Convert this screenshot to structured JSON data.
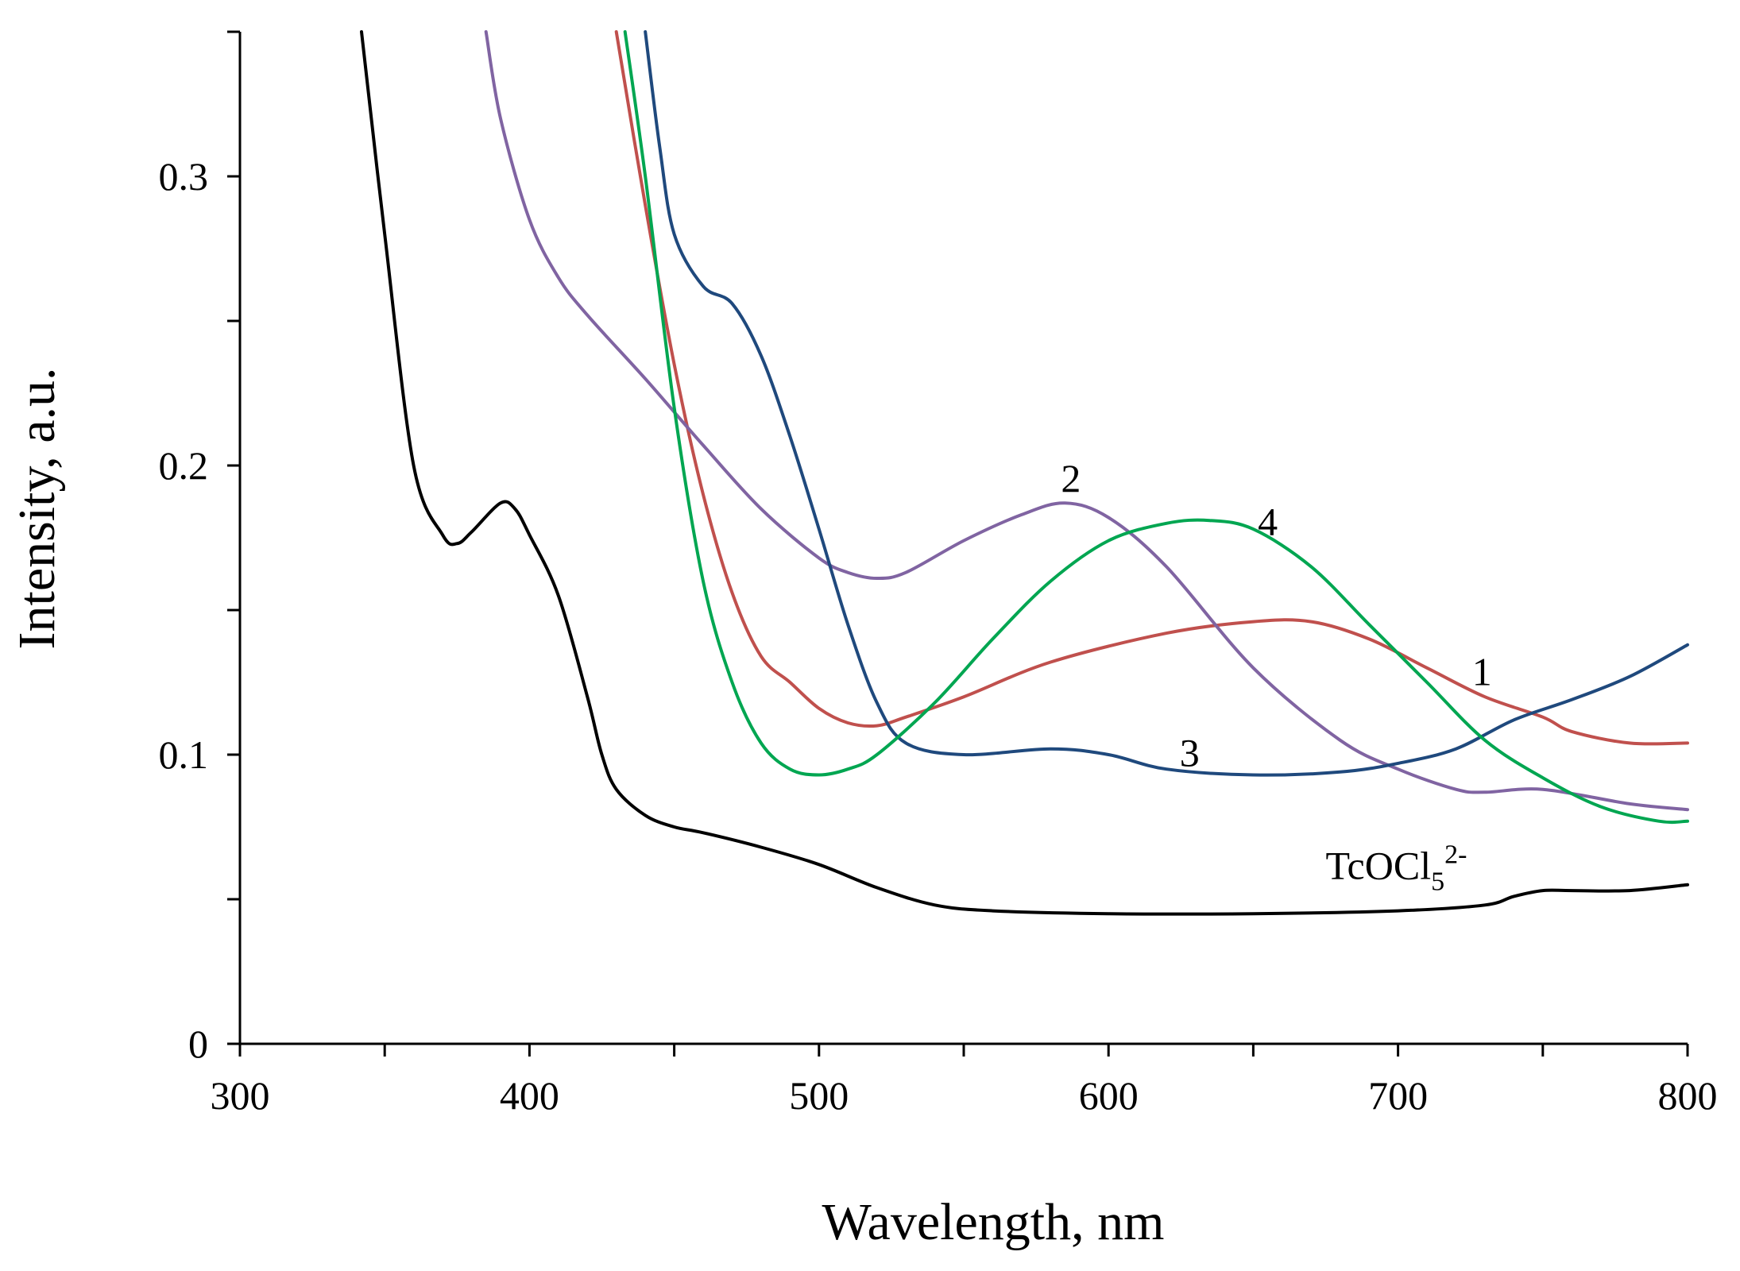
{
  "chart_data": {
    "type": "line",
    "title": "",
    "xlabel": "Wavelength, nm",
    "ylabel": "Intensity, a.u.",
    "xlim": [
      300,
      800
    ],
    "ylim": [
      0,
      0.35
    ],
    "x_ticks": [
      300,
      400,
      500,
      600,
      700,
      800
    ],
    "x_tick_labels": [
      "300",
      "400",
      "500",
      "600",
      "700",
      "800"
    ],
    "y_ticks": [
      0,
      0.1,
      0.2,
      0.3
    ],
    "y_tick_labels": [
      "0",
      "0.1",
      "0.2",
      "0.3"
    ],
    "grid": false,
    "legend": "none",
    "series": [
      {
        "name": "TcOCl5 2-",
        "label_main": "TcOCl",
        "label_sub": "5",
        "label_sup": "2-",
        "label_at": [
          675,
          0.057
        ],
        "color": "#000000",
        "x": [
          342,
          350,
          360,
          370,
          375,
          380,
          390,
          395,
          400,
          410,
          420,
          425,
          430,
          440,
          450,
          460,
          480,
          500,
          520,
          540,
          560,
          600,
          650,
          700,
          730,
          740,
          750,
          760,
          780,
          800
        ],
        "y": [
          0.35,
          0.28,
          0.2,
          0.176,
          0.173,
          0.177,
          0.187,
          0.185,
          0.176,
          0.155,
          0.12,
          0.1,
          0.088,
          0.079,
          0.075,
          0.073,
          0.068,
          0.062,
          0.054,
          0.048,
          0.046,
          0.045,
          0.045,
          0.046,
          0.048,
          0.051,
          0.053,
          0.053,
          0.053,
          0.055
        ]
      },
      {
        "name": "1",
        "label_at": [
          729,
          0.124
        ],
        "color": "#c0504d",
        "x": [
          430,
          440,
          450,
          460,
          470,
          480,
          490,
          500,
          510,
          520,
          530,
          550,
          580,
          620,
          650,
          670,
          690,
          710,
          730,
          750,
          760,
          780,
          800
        ],
        "y": [
          0.35,
          0.29,
          0.235,
          0.19,
          0.156,
          0.134,
          0.125,
          0.116,
          0.111,
          0.11,
          0.113,
          0.12,
          0.132,
          0.142,
          0.146,
          0.146,
          0.14,
          0.13,
          0.12,
          0.113,
          0.108,
          0.104,
          0.104
        ]
      },
      {
        "name": "2",
        "label_at": [
          587,
          0.191
        ],
        "color": "#8064a2",
        "x": [
          385,
          390,
          400,
          410,
          420,
          440,
          460,
          480,
          500,
          510,
          520,
          530,
          550,
          570,
          585,
          600,
          620,
          650,
          680,
          700,
          720,
          730,
          750,
          780,
          800
        ],
        "y": [
          0.35,
          0.32,
          0.285,
          0.265,
          0.252,
          0.23,
          0.207,
          0.185,
          0.168,
          0.163,
          0.161,
          0.163,
          0.174,
          0.183,
          0.187,
          0.182,
          0.165,
          0.13,
          0.105,
          0.095,
          0.088,
          0.087,
          0.088,
          0.083,
          0.081
        ]
      },
      {
        "name": "3",
        "label_at": [
          628,
          0.096
        ],
        "color": "#1f497d",
        "x": [
          440,
          445,
          450,
          460,
          470,
          480,
          490,
          500,
          510,
          520,
          530,
          550,
          580,
          600,
          620,
          650,
          680,
          700,
          720,
          740,
          760,
          780,
          800
        ],
        "y": [
          0.35,
          0.31,
          0.28,
          0.262,
          0.256,
          0.238,
          0.21,
          0.178,
          0.145,
          0.118,
          0.104,
          0.1,
          0.102,
          0.1,
          0.095,
          0.093,
          0.094,
          0.097,
          0.102,
          0.112,
          0.119,
          0.127,
          0.138
        ]
      },
      {
        "name": "4",
        "label_at": [
          655,
          0.176
        ],
        "color": "#00a651",
        "x": [
          433,
          440,
          450,
          460,
          470,
          480,
          490,
          500,
          510,
          520,
          540,
          560,
          580,
          600,
          620,
          635,
          650,
          670,
          690,
          710,
          730,
          750,
          770,
          790,
          800
        ],
        "y": [
          0.35,
          0.3,
          0.22,
          0.16,
          0.125,
          0.104,
          0.095,
          0.093,
          0.095,
          0.1,
          0.118,
          0.14,
          0.16,
          0.174,
          0.18,
          0.181,
          0.178,
          0.165,
          0.145,
          0.125,
          0.105,
          0.092,
          0.082,
          0.077,
          0.077
        ]
      }
    ]
  }
}
